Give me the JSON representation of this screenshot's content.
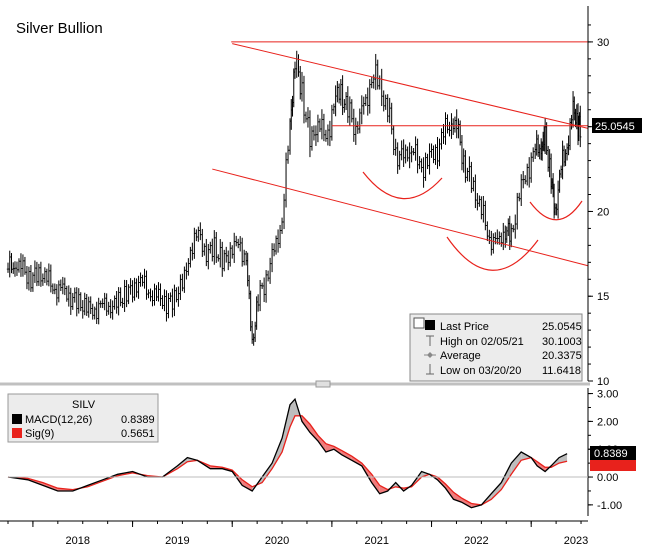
{
  "title": "Silver Bullion",
  "chart_data": [
    {
      "type": "candlestick",
      "title": "Silver Bullion",
      "ylim": [
        10,
        32
      ],
      "y_ticks": [
        "10",
        "15",
        "20",
        "25",
        "30"
      ],
      "x_ticks": [
        "2018",
        "2019",
        "2020",
        "2021",
        "2022",
        "2023"
      ],
      "last_price_tag": "25.0545",
      "close": [
        [
          2017.75,
          16.6
        ],
        [
          2017.82,
          17.0
        ],
        [
          2017.9,
          16.5
        ],
        [
          2017.98,
          16.0
        ],
        [
          2018.06,
          16.4
        ],
        [
          2018.14,
          16.0
        ],
        [
          2018.22,
          15.5
        ],
        [
          2018.3,
          15.3
        ],
        [
          2018.38,
          15.0
        ],
        [
          2018.46,
          14.6
        ],
        [
          2018.54,
          14.3
        ],
        [
          2018.62,
          14.2
        ],
        [
          2018.7,
          14.4
        ],
        [
          2018.78,
          14.5
        ],
        [
          2018.86,
          14.6
        ],
        [
          2018.94,
          15.2
        ],
        [
          2019.02,
          15.6
        ],
        [
          2019.1,
          15.8
        ],
        [
          2019.18,
          15.2
        ],
        [
          2019.26,
          14.9
        ],
        [
          2019.34,
          14.6
        ],
        [
          2019.42,
          14.9
        ],
        [
          2019.5,
          15.6
        ],
        [
          2019.58,
          17.8
        ],
        [
          2019.66,
          18.6
        ],
        [
          2019.74,
          17.6
        ],
        [
          2019.82,
          17.8
        ],
        [
          2019.9,
          17.0
        ],
        [
          2019.98,
          17.8
        ],
        [
          2020.06,
          17.9
        ],
        [
          2020.14,
          17.4
        ],
        [
          2020.2,
          12.0
        ],
        [
          2020.26,
          15.0
        ],
        [
          2020.34,
          16.0
        ],
        [
          2020.42,
          17.6
        ],
        [
          2020.5,
          19.6
        ],
        [
          2020.58,
          25.0
        ],
        [
          2020.63,
          29.0
        ],
        [
          2020.7,
          27.0
        ],
        [
          2020.78,
          24.0
        ],
        [
          2020.86,
          25.5
        ],
        [
          2020.94,
          24.0
        ],
        [
          2021.02,
          26.5
        ],
        [
          2021.09,
          27.0
        ],
        [
          2021.16,
          26.0
        ],
        [
          2021.24,
          25.0
        ],
        [
          2021.32,
          26.0
        ],
        [
          2021.4,
          28.0
        ],
        [
          2021.48,
          27.5
        ],
        [
          2021.56,
          26.0
        ],
        [
          2021.64,
          23.5
        ],
        [
          2021.72,
          23.0
        ],
        [
          2021.8,
          24.0
        ],
        [
          2021.88,
          22.5
        ],
        [
          2021.96,
          23.0
        ],
        [
          2022.04,
          23.5
        ],
        [
          2022.12,
          24.5
        ],
        [
          2022.2,
          25.5
        ],
        [
          2022.27,
          24.5
        ],
        [
          2022.34,
          22.5
        ],
        [
          2022.42,
          21.5
        ],
        [
          2022.5,
          20.0
        ],
        [
          2022.58,
          18.5
        ],
        [
          2022.66,
          18.0
        ],
        [
          2022.74,
          19.0
        ],
        [
          2022.8,
          18.5
        ],
        [
          2022.88,
          21.0
        ],
        [
          2022.96,
          22.5
        ],
        [
          2023.04,
          23.5
        ],
        [
          2023.1,
          24.0
        ],
        [
          2023.14,
          24.2
        ],
        [
          2023.2,
          22.0
        ],
        [
          2023.24,
          20.0
        ],
        [
          2023.3,
          22.5
        ],
        [
          2023.36,
          24.0
        ],
        [
          2023.42,
          25.8
        ],
        [
          2023.47,
          25.3
        ],
        [
          2023.5,
          25.05
        ]
      ],
      "reference_lines": [
        {
          "kind": "horizontal",
          "y": 30,
          "x_from": 2019.99,
          "x_to": 2023.57
        },
        {
          "kind": "horizontal",
          "y": 25.0545,
          "x_from": 2021.0,
          "x_to": 2023.57
        },
        {
          "kind": "trend",
          "points": [
            [
              2020.0,
              29.9
            ],
            [
              2023.57,
              24.9
            ]
          ]
        },
        {
          "kind": "trend",
          "points": [
            [
              2019.8,
              22.5
            ],
            [
              2023.57,
              16.8
            ]
          ]
        }
      ],
      "legend": {
        "placement": "bottom-right",
        "items": [
          {
            "label": "Last Price",
            "value": "25.0545"
          },
          {
            "label": "High on 02/05/21",
            "value": "30.1003"
          },
          {
            "label": "Average",
            "value": "20.3375"
          },
          {
            "label": "Low on 03/20/20",
            "value": "11.6418"
          }
        ]
      }
    },
    {
      "type": "line",
      "title": "SILV",
      "ylim": [
        -1.4,
        3.2
      ],
      "y_ticks": [
        "3.00",
        "2.00",
        "1.00",
        "0.00",
        "-1.00"
      ],
      "series": [
        {
          "name": "MACD(12,26)",
          "color": "#000000",
          "value_label": "0.8389",
          "points": [
            [
              2017.75,
              0.0
            ],
            [
              2017.95,
              -0.1
            ],
            [
              2018.1,
              -0.3
            ],
            [
              2018.25,
              -0.5
            ],
            [
              2018.4,
              -0.5
            ],
            [
              2018.55,
              -0.3
            ],
            [
              2018.7,
              -0.1
            ],
            [
              2018.85,
              0.1
            ],
            [
              2019.0,
              0.2
            ],
            [
              2019.15,
              0.0
            ],
            [
              2019.3,
              0.0
            ],
            [
              2019.45,
              0.4
            ],
            [
              2019.55,
              0.7
            ],
            [
              2019.65,
              0.6
            ],
            [
              2019.78,
              0.3
            ],
            [
              2019.9,
              0.3
            ],
            [
              2020.0,
              0.2
            ],
            [
              2020.1,
              -0.3
            ],
            [
              2020.2,
              -0.5
            ],
            [
              2020.3,
              0.0
            ],
            [
              2020.4,
              0.5
            ],
            [
              2020.5,
              1.4
            ],
            [
              2020.58,
              2.6
            ],
            [
              2020.63,
              2.8
            ],
            [
              2020.7,
              2.0
            ],
            [
              2020.78,
              1.6
            ],
            [
              2020.86,
              1.3
            ],
            [
              2020.94,
              0.9
            ],
            [
              2021.02,
              1.0
            ],
            [
              2021.1,
              0.8
            ],
            [
              2021.2,
              0.6
            ],
            [
              2021.3,
              0.4
            ],
            [
              2021.4,
              -0.2
            ],
            [
              2021.48,
              -0.6
            ],
            [
              2021.56,
              -0.5
            ],
            [
              2021.64,
              -0.2
            ],
            [
              2021.72,
              -0.5
            ],
            [
              2021.8,
              -0.3
            ],
            [
              2021.9,
              0.2
            ],
            [
              2021.98,
              0.1
            ],
            [
              2022.06,
              -0.1
            ],
            [
              2022.14,
              -0.4
            ],
            [
              2022.22,
              -0.8
            ],
            [
              2022.3,
              -0.9
            ],
            [
              2022.4,
              -1.1
            ],
            [
              2022.5,
              -1.0
            ],
            [
              2022.6,
              -0.6
            ],
            [
              2022.7,
              -0.2
            ],
            [
              2022.8,
              0.5
            ],
            [
              2022.9,
              0.9
            ],
            [
              2023.0,
              0.7
            ],
            [
              2023.06,
              0.4
            ],
            [
              2023.14,
              0.2
            ],
            [
              2023.2,
              0.4
            ],
            [
              2023.28,
              0.7
            ],
            [
              2023.36,
              0.84
            ]
          ]
        },
        {
          "name": "Sig(9)",
          "color": "#e8221c",
          "value_label": "0.5651",
          "points": [
            [
              2017.75,
              0.0
            ],
            [
              2017.95,
              -0.05
            ],
            [
              2018.1,
              -0.2
            ],
            [
              2018.25,
              -0.4
            ],
            [
              2018.4,
              -0.45
            ],
            [
              2018.55,
              -0.35
            ],
            [
              2018.7,
              -0.15
            ],
            [
              2018.85,
              0.05
            ],
            [
              2019.0,
              0.15
            ],
            [
              2019.15,
              0.05
            ],
            [
              2019.3,
              0.0
            ],
            [
              2019.45,
              0.3
            ],
            [
              2019.55,
              0.55
            ],
            [
              2019.65,
              0.6
            ],
            [
              2019.78,
              0.4
            ],
            [
              2019.9,
              0.35
            ],
            [
              2020.0,
              0.25
            ],
            [
              2020.1,
              -0.1
            ],
            [
              2020.2,
              -0.35
            ],
            [
              2020.3,
              -0.2
            ],
            [
              2020.4,
              0.3
            ],
            [
              2020.5,
              0.9
            ],
            [
              2020.58,
              1.8
            ],
            [
              2020.63,
              2.2
            ],
            [
              2020.7,
              2.2
            ],
            [
              2020.78,
              1.9
            ],
            [
              2020.86,
              1.5
            ],
            [
              2020.94,
              1.2
            ],
            [
              2021.02,
              1.1
            ],
            [
              2021.1,
              0.95
            ],
            [
              2021.2,
              0.75
            ],
            [
              2021.3,
              0.5
            ],
            [
              2021.4,
              0.1
            ],
            [
              2021.48,
              -0.3
            ],
            [
              2021.56,
              -0.45
            ],
            [
              2021.64,
              -0.35
            ],
            [
              2021.72,
              -0.4
            ],
            [
              2021.8,
              -0.35
            ],
            [
              2021.9,
              0.0
            ],
            [
              2021.98,
              0.1
            ],
            [
              2022.06,
              0.0
            ],
            [
              2022.14,
              -0.25
            ],
            [
              2022.22,
              -0.55
            ],
            [
              2022.3,
              -0.75
            ],
            [
              2022.4,
              -0.95
            ],
            [
              2022.5,
              -1.0
            ],
            [
              2022.6,
              -0.8
            ],
            [
              2022.7,
              -0.45
            ],
            [
              2022.8,
              0.1
            ],
            [
              2022.9,
              0.6
            ],
            [
              2023.0,
              0.7
            ],
            [
              2023.06,
              0.55
            ],
            [
              2023.14,
              0.35
            ],
            [
              2023.2,
              0.35
            ],
            [
              2023.28,
              0.5
            ],
            [
              2023.36,
              0.57
            ]
          ]
        }
      ],
      "legend": {
        "placement": "top-left",
        "title": "SILV"
      }
    }
  ],
  "colors": {
    "price_bars": "#000000",
    "signal_line": "#e8221c",
    "fill_macd_above": "#bdbdbd",
    "fill_macd_below": "#f07c7c",
    "annotation_lines": "#e8221c",
    "separator": "#c0c0c0"
  }
}
